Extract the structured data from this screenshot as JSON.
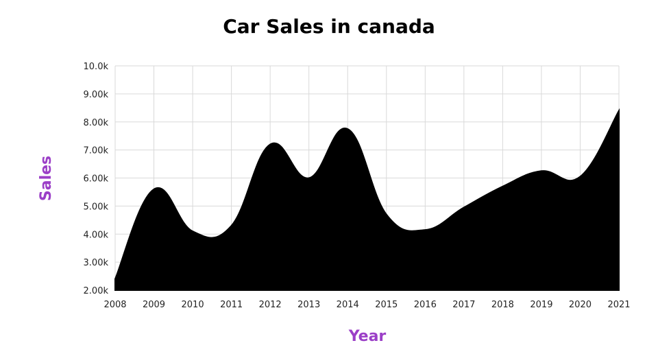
{
  "chart_data": {
    "type": "area",
    "title": "Car Sales in canada",
    "xlabel": "Year",
    "ylabel": "Sales",
    "x": [
      "2008",
      "2009",
      "2010",
      "2011",
      "2012",
      "2013",
      "2014",
      "2015",
      "2016",
      "2017",
      "2018",
      "2019",
      "2020",
      "2021"
    ],
    "series": [
      {
        "values": [
          2400,
          5600,
          4100,
          4300,
          7200,
          6000,
          7750,
          4700,
          4150,
          4950,
          5700,
          6250,
          6050,
          8400
        ]
      }
    ],
    "ylim": [
      2000,
      10000
    ],
    "yticks": [
      2000,
      3000,
      4000,
      5000,
      6000,
      7000,
      8000,
      9000,
      10000
    ],
    "ytick_labels": [
      "2.00k",
      "3.00k",
      "4.00k",
      "5.00k",
      "6.00k",
      "7.00k",
      "8.00k",
      "9.00k",
      "10.0k"
    ],
    "grid": true,
    "fill_color": "#000000",
    "axis_title_color": "#9b3fc7"
  }
}
